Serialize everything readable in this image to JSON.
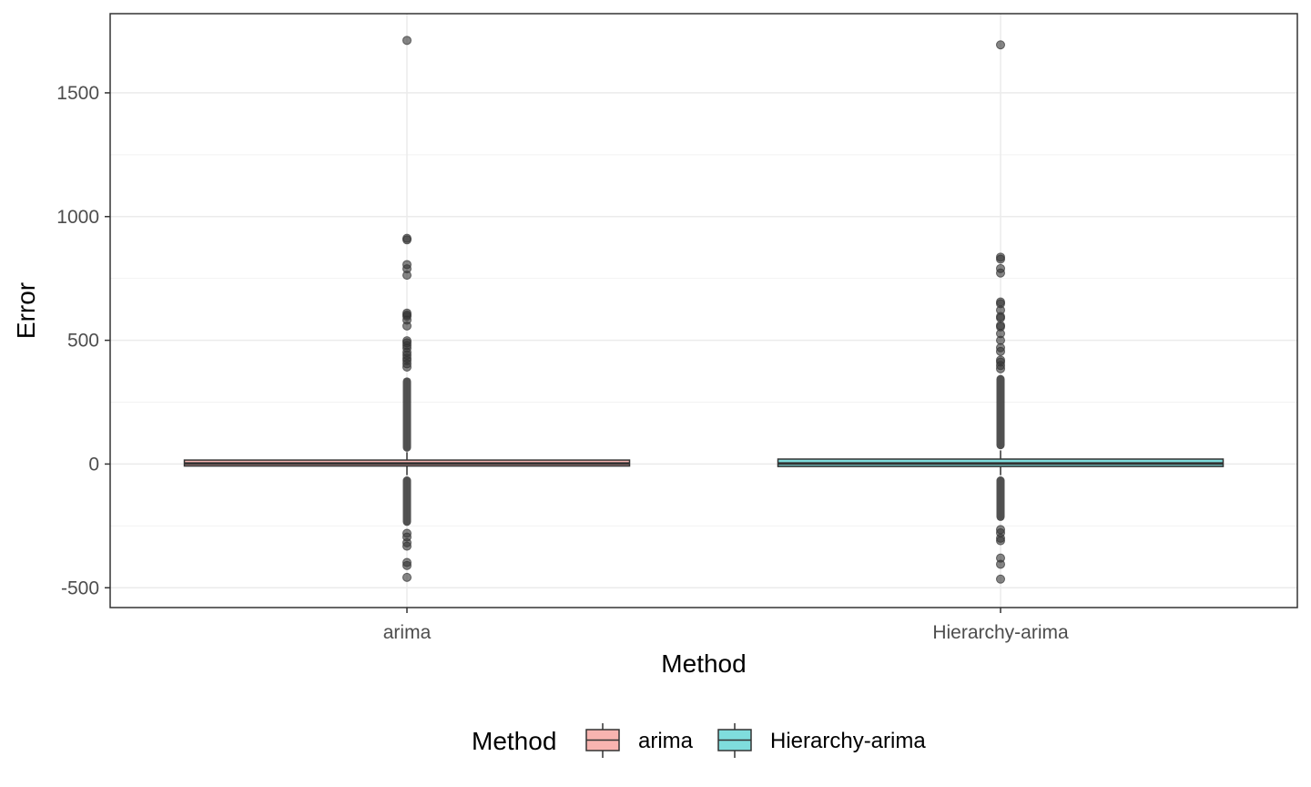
{
  "chart_data": {
    "type": "box",
    "title": "",
    "xlabel": "Method",
    "ylabel": "Error",
    "ylim": [
      -580,
      1820
    ],
    "yticks": [
      -500,
      0,
      500,
      1000,
      1500
    ],
    "ytick_labels": [
      "-500",
      "0",
      "500",
      "1000",
      "1500"
    ],
    "grid": true,
    "legend": {
      "title": "Method",
      "placement": "bottom",
      "entries": [
        {
          "label": "arima",
          "color": "#f8b4b0"
        },
        {
          "label": "Hierarchy-arima",
          "color": "#7fdddd"
        }
      ]
    },
    "categories": [
      "arima",
      "Hierarchy-arima"
    ],
    "boxes": [
      {
        "name": "arima",
        "fill": "#f8b4b0",
        "q1": -8,
        "median": 2,
        "q3": 16,
        "whisker_low": -45,
        "whisker_high": 48,
        "outliers": [
          1712,
          912,
          906,
          806,
          789,
          763,
          610,
          603,
          597,
          582,
          558,
          498,
          490,
          479,
          468,
          452,
          440,
          428,
          418,
          405,
          392,
          -280,
          -295,
          -318,
          -332,
          -398,
          -410,
          -458
        ]
      },
      {
        "name": "Hierarchy-arima",
        "fill": "#7fdddd",
        "q1": -10,
        "median": 2,
        "q3": 20,
        "whisker_low": -45,
        "whisker_high": 55,
        "outliers": [
          1694,
          836,
          828,
          790,
          772,
          655,
          648,
          622,
          596,
          590,
          560,
          554,
          527,
          500,
          470,
          455,
          420,
          412,
          398,
          385,
          -265,
          -278,
          -300,
          -310,
          -380,
          -405,
          -465
        ]
      }
    ],
    "dense_ranges": [
      {
        "box": "arima",
        "low": 50,
        "high": 350
      },
      {
        "box": "arima",
        "low": -250,
        "high": -50
      },
      {
        "box": "Hierarchy-arima",
        "low": 60,
        "high": 360
      },
      {
        "box": "Hierarchy-arima",
        "low": -230,
        "high": -50
      }
    ],
    "colors": {
      "outlier": "#333333",
      "box_stroke": "#333333",
      "grid_major": "#ebebeb",
      "grid_minor": "#f2f2f2",
      "panel_border": "#333333"
    }
  }
}
